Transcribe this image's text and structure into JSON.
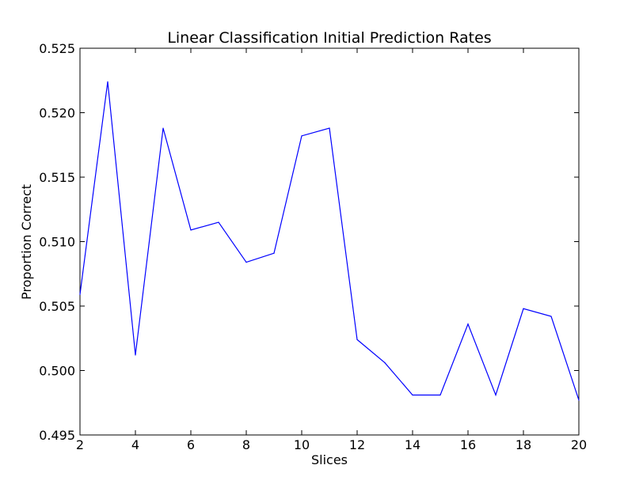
{
  "chart_data": {
    "type": "line",
    "title": "Linear Classification Initial Prediction Rates",
    "xlabel": "Slices",
    "ylabel": "Proportion Correct",
    "xlim": [
      2,
      20
    ],
    "ylim": [
      0.495,
      0.525
    ],
    "x_ticks": [
      "2",
      "4",
      "6",
      "8",
      "10",
      "12",
      "14",
      "16",
      "18",
      "20"
    ],
    "y_ticks": [
      "0.495",
      "0.500",
      "0.505",
      "0.510",
      "0.515",
      "0.520",
      "0.525"
    ],
    "grid": false,
    "series": [
      {
        "color": "#0000ff",
        "x": [
          2,
          3,
          4,
          5,
          6,
          7,
          8,
          9,
          10,
          11,
          12,
          13,
          14,
          15,
          16,
          17,
          18,
          19,
          20
        ],
        "y": [
          0.5059,
          0.5224,
          0.5012,
          0.5188,
          0.5109,
          0.5115,
          0.5084,
          0.5091,
          0.5182,
          0.5188,
          0.5024,
          0.5006,
          0.4981,
          0.4981,
          0.5036,
          0.4981,
          0.5048,
          0.5042,
          0.4977
        ]
      }
    ]
  }
}
